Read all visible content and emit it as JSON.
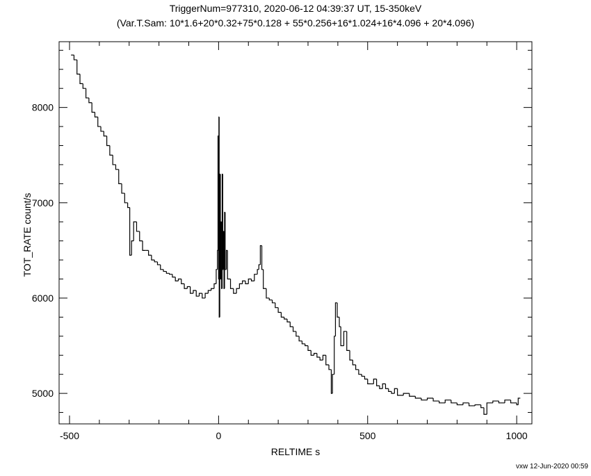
{
  "chart_data": {
    "type": "line",
    "drawstyle": "steps",
    "color": "#000000",
    "title": "TriggerNum=977310, 2020-06-12 04:39:37 UT, 15-350keV",
    "subtitle": "(Var.T.Sam: 10*1.6+20*0.32+75*0.128  +  55*0.256+16*1.024+16*4.096  +  20*4.096)",
    "x_label": "RELTIME  s",
    "y_label": "TOT_RATE  count/s",
    "footer": "vxw 12-Jun-2020 00:59",
    "xlim": [
      -535,
      1051
    ],
    "ylim": [
      4680,
      8690
    ],
    "xticks": [
      -500,
      0,
      500,
      1000
    ],
    "yticks": [
      5000,
      6000,
      7000,
      8000
    ],
    "xminorticks": [
      -400,
      -300,
      -200,
      -100,
      100,
      200,
      300,
      400,
      600,
      700,
      800,
      900
    ],
    "yminorticks": [
      4800,
      5200,
      5400,
      5600,
      5800,
      6200,
      6400,
      6600,
      6800,
      7200,
      7400,
      7600,
      7800,
      8200,
      8400,
      8600
    ],
    "x": [
      -495,
      -485,
      -475,
      -465,
      -455,
      -445,
      -435,
      -425,
      -415,
      -405,
      -395,
      -385,
      -375,
      -365,
      -355,
      -345,
      -335,
      -325,
      -315,
      -305,
      -298,
      -292,
      -285,
      -275,
      -265,
      -255,
      -245,
      -235,
      -225,
      -215,
      -205,
      -195,
      -185,
      -175,
      -165,
      -155,
      -145,
      -135,
      -125,
      -115,
      -105,
      -95,
      -85,
      -75,
      -65,
      -55,
      -45,
      -35,
      -25,
      -15,
      -8,
      -4,
      -2,
      0,
      1,
      2,
      4,
      6,
      8,
      10,
      12,
      14,
      16,
      18,
      20,
      22,
      26,
      30,
      40,
      50,
      60,
      70,
      80,
      90,
      100,
      110,
      120,
      130,
      135,
      140,
      145,
      150,
      160,
      170,
      180,
      190,
      200,
      210,
      220,
      230,
      240,
      250,
      260,
      270,
      280,
      290,
      300,
      310,
      320,
      330,
      340,
      350,
      360,
      370,
      378,
      382,
      388,
      392,
      398,
      405,
      410,
      420,
      430,
      440,
      450,
      460,
      470,
      480,
      490,
      500,
      510,
      520,
      530,
      540,
      550,
      560,
      570,
      580,
      590,
      600,
      620,
      640,
      660,
      680,
      700,
      720,
      740,
      760,
      780,
      800,
      820,
      840,
      860,
      880,
      890,
      900,
      920,
      940,
      960,
      980,
      1000,
      1005
    ],
    "values": [
      8550,
      8500,
      8350,
      8250,
      8200,
      8100,
      8050,
      7950,
      7900,
      7800,
      7750,
      7700,
      7600,
      7500,
      7400,
      7350,
      7200,
      7100,
      7000,
      6950,
      6450,
      6600,
      6800,
      6700,
      6600,
      6500,
      6500,
      6450,
      6400,
      6380,
      6350,
      6300,
      6280,
      6260,
      6250,
      6220,
      6180,
      6200,
      6150,
      6100,
      6120,
      6050,
      6080,
      6020,
      6050,
      6000,
      6050,
      6080,
      6100,
      6150,
      6300,
      6500,
      7700,
      6200,
      7900,
      5800,
      7300,
      6200,
      6800,
      6100,
      7300,
      6300,
      6700,
      6100,
      6900,
      6300,
      6500,
      6200,
      6100,
      6050,
      6100,
      6150,
      6180,
      6150,
      6200,
      6180,
      6250,
      6300,
      6350,
      6550,
      6300,
      6100,
      6000,
      5980,
      5950,
      5900,
      5850,
      5800,
      5780,
      5750,
      5700,
      5650,
      5600,
      5550,
      5520,
      5500,
      5450,
      5400,
      5420,
      5380,
      5350,
      5400,
      5300,
      5250,
      5000,
      5200,
      5600,
      5950,
      5800,
      5700,
      5500,
      5650,
      5450,
      5350,
      5300,
      5250,
      5200,
      5180,
      5150,
      5100,
      5100,
      5150,
      5080,
      5050,
      5100,
      5050,
      5020,
      5000,
      5050,
      4980,
      5000,
      4970,
      4950,
      4930,
      4950,
      4920,
      4900,
      4930,
      4900,
      4880,
      4900,
      4870,
      4880,
      4850,
      4780,
      4900,
      4920,
      4900,
      4930,
      4900,
      4880,
      4950
    ]
  }
}
